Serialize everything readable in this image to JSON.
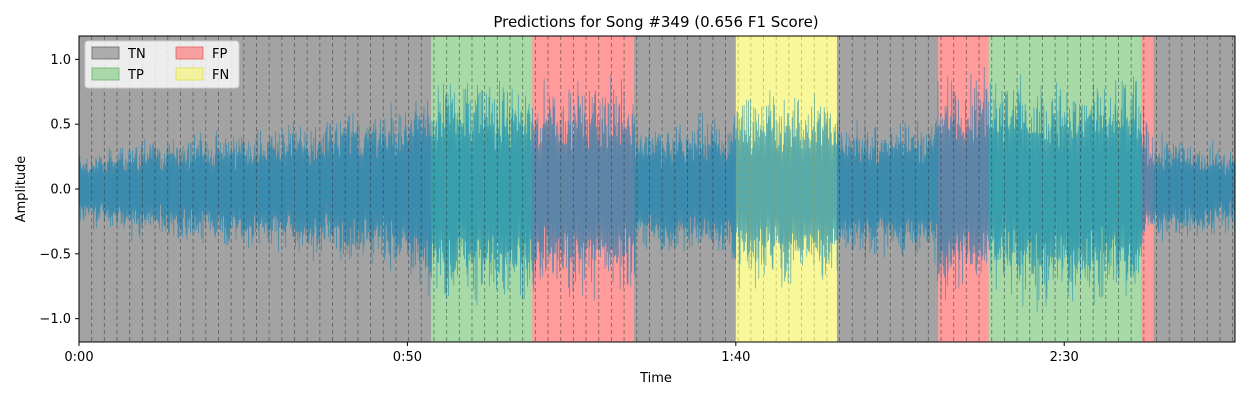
{
  "chart_data": {
    "type": "area",
    "title": "Predictions for Song #349 (0.656 F1 Score)",
    "xlabel": "Time",
    "ylabel": "Amplitude",
    "xlim": [
      0,
      176
    ],
    "ylim": [
      -1.18,
      1.18
    ],
    "x_ticks": [
      {
        "value": 0,
        "label": "0:00"
      },
      {
        "value": 50,
        "label": "0:50"
      },
      {
        "value": 100,
        "label": "1:40"
      },
      {
        "value": 150,
        "label": "2:30"
      }
    ],
    "y_ticks": [
      {
        "value": 1.0,
        "label": "1.0"
      },
      {
        "value": 0.5,
        "label": "0.5"
      },
      {
        "value": 0.0,
        "label": "0.0"
      },
      {
        "value": -0.5,
        "label": "−0.5"
      },
      {
        "value": -1.0,
        "label": "−1.0"
      }
    ],
    "legend": {
      "placement": "top-left",
      "entries": [
        {
          "key": "TN",
          "label": "TN"
        },
        {
          "key": "FP",
          "label": "FP"
        },
        {
          "key": "TP",
          "label": "TP"
        },
        {
          "key": "FN",
          "label": "FN"
        }
      ]
    },
    "colors": {
      "TN": "#808080",
      "TP": "#7fc97f",
      "FP": "#ff6b6b",
      "FN": "#f5f56a",
      "waveform": "#1f8fc0"
    },
    "segments": [
      {
        "label": "TN",
        "start": 0,
        "end": 53.6
      },
      {
        "label": "TP",
        "start": 53.6,
        "end": 69.0
      },
      {
        "label": "FP",
        "start": 69.0,
        "end": 84.5
      },
      {
        "label": "TN",
        "start": 84.5,
        "end": 100.0
      },
      {
        "label": "FN",
        "start": 100.0,
        "end": 115.4
      },
      {
        "label": "TN",
        "start": 115.4,
        "end": 130.8
      },
      {
        "label": "FP",
        "start": 130.8,
        "end": 138.5
      },
      {
        "label": "TP",
        "start": 138.5,
        "end": 161.7
      },
      {
        "label": "FP",
        "start": 161.7,
        "end": 163.6
      },
      {
        "label": "TN",
        "start": 163.6,
        "end": 176
      }
    ],
    "beat_interval": 1.93,
    "waveform_envelope": [
      {
        "x": 0,
        "amp": 0.3
      },
      {
        "x": 10,
        "amp": 0.42
      },
      {
        "x": 25,
        "amp": 0.5
      },
      {
        "x": 40,
        "amp": 0.62
      },
      {
        "x": 50,
        "amp": 0.72
      },
      {
        "x": 53.6,
        "amp": 0.95
      },
      {
        "x": 69,
        "amp": 0.9
      },
      {
        "x": 84.5,
        "amp": 0.88
      },
      {
        "x": 85,
        "amp": 0.55
      },
      {
        "x": 99,
        "amp": 0.6
      },
      {
        "x": 100,
        "amp": 0.82
      },
      {
        "x": 115,
        "amp": 0.82
      },
      {
        "x": 116,
        "amp": 0.55
      },
      {
        "x": 130,
        "amp": 0.6
      },
      {
        "x": 131,
        "amp": 0.95
      },
      {
        "x": 161,
        "amp": 0.92
      },
      {
        "x": 163,
        "amp": 0.45
      },
      {
        "x": 176,
        "amp": 0.35
      }
    ]
  }
}
